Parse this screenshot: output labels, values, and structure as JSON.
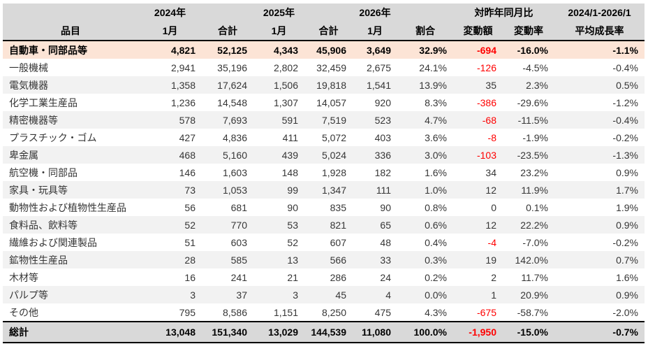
{
  "table": {
    "header": {
      "item": "品目",
      "year_2024": "2024年",
      "year_2025": "2025年",
      "year_2026": "2026年",
      "yoy_group": "対昨年同月比",
      "period_range": "2024/1-2026/1",
      "sub": [
        "1月",
        "合計",
        "1月",
        "合計",
        "1月",
        "割合",
        "変動額",
        "変動率",
        "平均成長率"
      ]
    },
    "rows": [
      {
        "label": "自動車・同部品等",
        "type": "highlight",
        "values": [
          "4,821",
          "52,125",
          "4,343",
          "45,906",
          "3,649",
          "32.9%",
          "-694",
          "-16.0%",
          "-1.1%"
        ]
      },
      {
        "label": "一般機械",
        "type": "plain",
        "values": [
          "2,941",
          "35,196",
          "2,802",
          "32,459",
          "2,675",
          "24.1%",
          "-126",
          "-4.5%",
          "-0.4%"
        ]
      },
      {
        "label": "電気機器",
        "type": "stripe",
        "values": [
          "1,358",
          "17,624",
          "1,506",
          "19,818",
          "1,541",
          "13.9%",
          "35",
          "2.3%",
          "0.5%"
        ]
      },
      {
        "label": "化学工業生産品",
        "type": "plain",
        "values": [
          "1,236",
          "14,548",
          "1,307",
          "14,057",
          "920",
          "8.3%",
          "-386",
          "-29.6%",
          "-1.2%"
        ]
      },
      {
        "label": "精密機器等",
        "type": "stripe",
        "values": [
          "578",
          "7,693",
          "591",
          "7,519",
          "523",
          "4.7%",
          "-68",
          "-11.5%",
          "-0.4%"
        ]
      },
      {
        "label": "プラスチック・ゴム",
        "type": "plain",
        "values": [
          "427",
          "4,836",
          "411",
          "5,072",
          "403",
          "3.6%",
          "-8",
          "-1.9%",
          "-0.2%"
        ]
      },
      {
        "label": "卑金属",
        "type": "stripe",
        "values": [
          "468",
          "5,160",
          "439",
          "5,024",
          "336",
          "3.0%",
          "-103",
          "-23.5%",
          "-1.3%"
        ]
      },
      {
        "label": "航空機・同部品",
        "type": "plain",
        "values": [
          "146",
          "1,603",
          "148",
          "1,928",
          "182",
          "1.6%",
          "34",
          "23.2%",
          "0.9%"
        ]
      },
      {
        "label": "家具・玩具等",
        "type": "stripe",
        "values": [
          "73",
          "1,053",
          "99",
          "1,347",
          "111",
          "1.0%",
          "12",
          "11.9%",
          "1.7%"
        ]
      },
      {
        "label": "動物性および植物性生産品",
        "type": "plain",
        "values": [
          "56",
          "681",
          "90",
          "835",
          "90",
          "0.8%",
          "0",
          "0.1%",
          "1.9%"
        ]
      },
      {
        "label": "食料品、飲料等",
        "type": "stripe",
        "values": [
          "52",
          "770",
          "53",
          "821",
          "65",
          "0.6%",
          "12",
          "22.2%",
          "0.9%"
        ]
      },
      {
        "label": "繊維および関連製品",
        "type": "plain",
        "values": [
          "51",
          "603",
          "52",
          "607",
          "48",
          "0.4%",
          "-4",
          "-7.0%",
          "-0.2%"
        ]
      },
      {
        "label": "鉱物性生産品",
        "type": "stripe",
        "values": [
          "28",
          "585",
          "13",
          "566",
          "33",
          "0.3%",
          "19",
          "142.0%",
          "0.7%"
        ]
      },
      {
        "label": "木材等",
        "type": "plain",
        "values": [
          "16",
          "241",
          "21",
          "286",
          "24",
          "0.2%",
          "2",
          "11.7%",
          "1.6%"
        ]
      },
      {
        "label": "パルプ等",
        "type": "stripe",
        "values": [
          "3",
          "37",
          "3",
          "45",
          "4",
          "0.0%",
          "1",
          "20.9%",
          "0.9%"
        ]
      },
      {
        "label": "その他",
        "type": "plain",
        "values": [
          "795",
          "8,586",
          "1,151",
          "8,250",
          "475",
          "4.3%",
          "-675",
          "-58.7%",
          "-2.0%"
        ]
      },
      {
        "label": "総計",
        "type": "total",
        "values": [
          "13,048",
          "151,340",
          "13,029",
          "144,539",
          "11,080",
          "100.0%",
          "-1,950",
          "-15.0%",
          "-0.7%"
        ]
      }
    ],
    "negative_change_column_index": 6
  },
  "colors": {
    "header_bg": "#d9d9d9",
    "total_bg": "#d9d9d9",
    "stripe_bg": "#f2f2f2",
    "highlight_bg": "#fce4d6",
    "negative": "#ff0000",
    "border": "#000000",
    "text": "#363636",
    "bold_text": "#000000"
  }
}
